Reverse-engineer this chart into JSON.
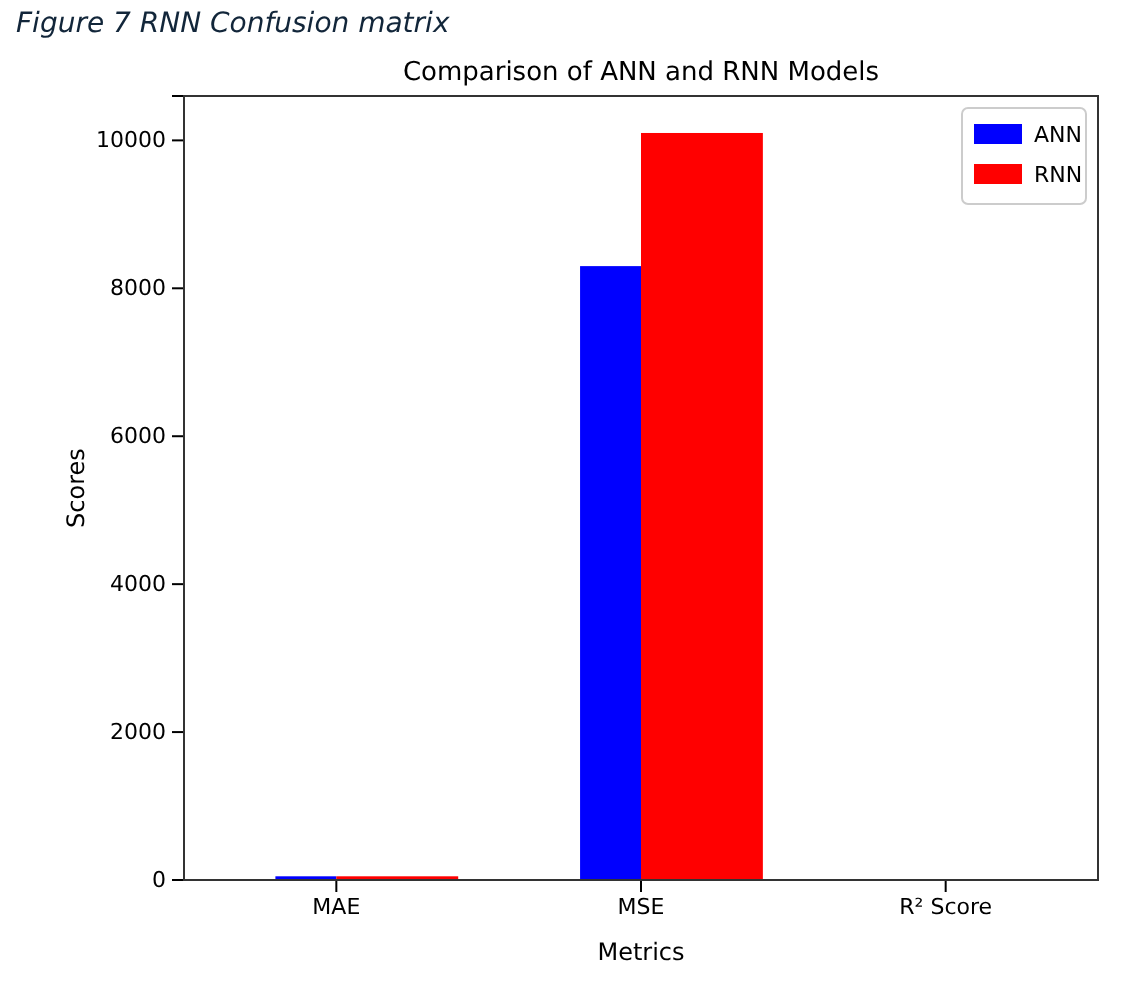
{
  "chart_data": {
    "type": "bar",
    "title": "Comparison of ANN and RNN Models",
    "xlabel": "Metrics",
    "ylabel": "Scores",
    "categories": [
      "MAE",
      "MSE",
      "R² Score"
    ],
    "series": [
      {
        "name": "ANN",
        "color": "#0000ff",
        "values": [
          50,
          8300,
          null
        ]
      },
      {
        "name": "RNN",
        "color": "#ff0000",
        "values": [
          50,
          10100,
          null
        ]
      }
    ],
    "ylim": [
      0,
      10600
    ],
    "yticks": [
      0,
      2000,
      4000,
      6000,
      8000,
      10000
    ],
    "legend": "top right",
    "annotations": [
      "Figure 7 RNN  Confusion matrix"
    ]
  }
}
